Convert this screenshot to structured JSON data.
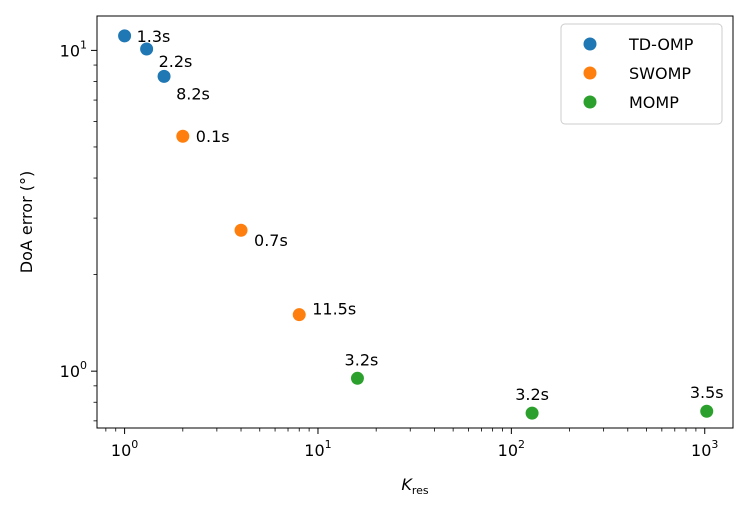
{
  "chart_data": {
    "type": "scatter",
    "x_scale": "log",
    "y_scale": "log",
    "xlim": [
      0.72,
      1400
    ],
    "ylim": [
      0.665,
      12.8
    ],
    "xlabel": {
      "main": "K",
      "sub": "res"
    },
    "ylabel": "DoA error (°)",
    "x_ticks": [
      {
        "value": 1,
        "base": "10",
        "exp": "0"
      },
      {
        "value": 10,
        "base": "10",
        "exp": "1"
      },
      {
        "value": 100,
        "base": "10",
        "exp": "2"
      },
      {
        "value": 1000,
        "base": "10",
        "exp": "3"
      }
    ],
    "y_ticks": [
      {
        "value": 1,
        "base": "10",
        "exp": "0"
      },
      {
        "value": 10,
        "base": "10",
        "exp": "1"
      }
    ],
    "legend_position": "top-right",
    "grid": false,
    "series": [
      {
        "name": "TD-OMP",
        "color": "#1f77b4",
        "points": [
          {
            "x": 1,
            "y": 11.1,
            "label": "1.3s"
          },
          {
            "x": 1.3,
            "y": 10.1,
            "label": "2.2s"
          },
          {
            "x": 1.6,
            "y": 8.3,
            "label": "8.2s"
          }
        ]
      },
      {
        "name": "SWOMP",
        "color": "#ff7f0e",
        "points": [
          {
            "x": 2,
            "y": 5.4,
            "label": "0.1s"
          },
          {
            "x": 4,
            "y": 2.75,
            "label": "0.7s"
          },
          {
            "x": 8,
            "y": 1.5,
            "label": "11.5s"
          }
        ]
      },
      {
        "name": "MOMP",
        "color": "#2ca02c",
        "points": [
          {
            "x": 16,
            "y": 0.95,
            "label": "3.2s"
          },
          {
            "x": 128,
            "y": 0.74,
            "label": "3.2s"
          },
          {
            "x": 1024,
            "y": 0.75,
            "label": "3.5s"
          }
        ]
      }
    ]
  }
}
